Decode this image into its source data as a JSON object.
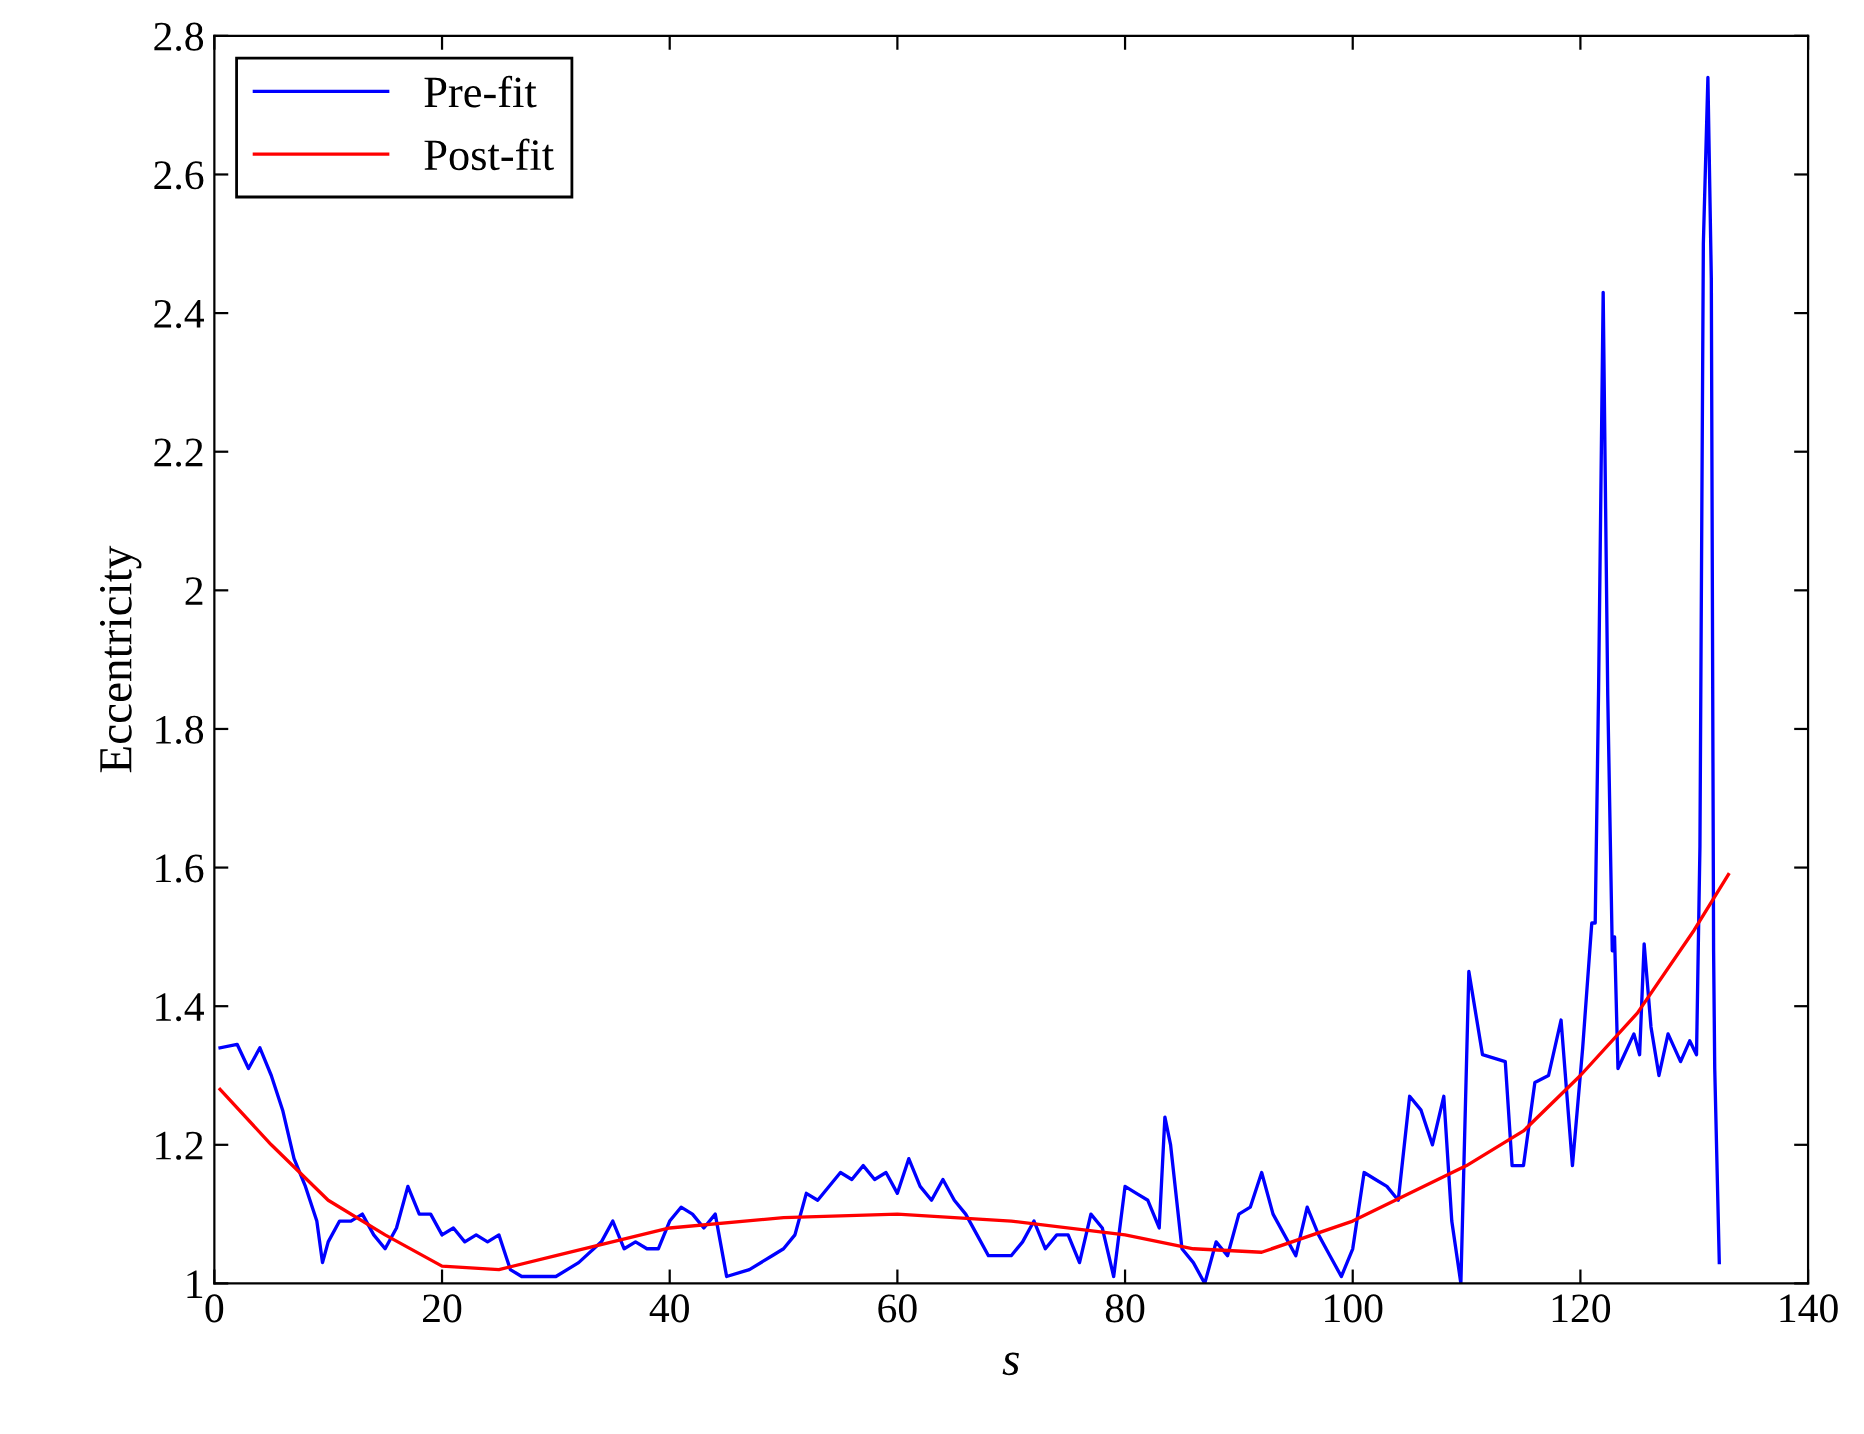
{
  "chart_data": {
    "type": "line",
    "xlabel": "s",
    "ylabel": "Eccentricity",
    "xlim": [
      0,
      140
    ],
    "ylim": [
      1,
      2.8
    ],
    "xticks": [
      0,
      20,
      40,
      60,
      80,
      100,
      120,
      140
    ],
    "yticks": [
      1,
      1.2,
      1.4,
      1.6,
      1.8,
      2,
      2.2,
      2.4,
      2.6,
      2.8
    ],
    "grid": false,
    "legend": "top left",
    "marker": "none",
    "line_style": "solid",
    "series": [
      {
        "name": "Pre-fit",
        "color": "#0000ff",
        "x": [
          0.5,
          2,
          3,
          4,
          5,
          6,
          7,
          8,
          9,
          9.5,
          10,
          11,
          12,
          13,
          14,
          15,
          16,
          17,
          18,
          19,
          20,
          21,
          22,
          23,
          24,
          25,
          26,
          27,
          28,
          30,
          32,
          34,
          35,
          36,
          37,
          38,
          39,
          40,
          41,
          42,
          43,
          44,
          45,
          47,
          49,
          50,
          51,
          52,
          53,
          55,
          56,
          57,
          58,
          59,
          60,
          61,
          62,
          63,
          64,
          65,
          66,
          67,
          68,
          70,
          71,
          72,
          73,
          74,
          75,
          76,
          77,
          78,
          79,
          80,
          81,
          82,
          83,
          83.5,
          84,
          85,
          86,
          87,
          88,
          89,
          90,
          91,
          92,
          93,
          94,
          95,
          96,
          97,
          98,
          99,
          100,
          101,
          102,
          103,
          104,
          105,
          106,
          107,
          108,
          108.7,
          109.5,
          110.2,
          111.4,
          113.4,
          114,
          115,
          116,
          117.2,
          118.3,
          119.3,
          120.2,
          121,
          121.3,
          121.6,
          122,
          122.4,
          122.8,
          123,
          123.3,
          124.7,
          125.2,
          125.6,
          126.2,
          126.9,
          127.7,
          128.8,
          129.6,
          130.2,
          130.5,
          130.8,
          131.2,
          131.5,
          131.7,
          131.8,
          132.2
        ],
        "values": [
          1.34,
          1.345,
          1.31,
          1.34,
          1.3,
          1.25,
          1.18,
          1.14,
          1.09,
          1.03,
          1.06,
          1.09,
          1.09,
          1.1,
          1.07,
          1.05,
          1.08,
          1.14,
          1.1,
          1.1,
          1.07,
          1.08,
          1.06,
          1.07,
          1.06,
          1.07,
          1.02,
          1.01,
          1.01,
          1.01,
          1.03,
          1.06,
          1.09,
          1.05,
          1.06,
          1.05,
          1.05,
          1.09,
          1.11,
          1.1,
          1.08,
          1.1,
          1.01,
          1.02,
          1.04,
          1.05,
          1.07,
          1.13,
          1.12,
          1.16,
          1.15,
          1.17,
          1.15,
          1.16,
          1.13,
          1.18,
          1.14,
          1.12,
          1.15,
          1.12,
          1.1,
          1.07,
          1.04,
          1.04,
          1.06,
          1.09,
          1.05,
          1.07,
          1.07,
          1.03,
          1.1,
          1.08,
          1.01,
          1.14,
          1.13,
          1.12,
          1.08,
          1.24,
          1.2,
          1.05,
          1.03,
          1.0,
          1.06,
          1.04,
          1.1,
          1.11,
          1.16,
          1.1,
          1.07,
          1.04,
          1.11,
          1.07,
          1.04,
          1.01,
          1.05,
          1.16,
          1.15,
          1.14,
          1.12,
          1.27,
          1.25,
          1.2,
          1.27,
          1.09,
          1.0,
          1.45,
          1.33,
          1.32,
          1.17,
          1.17,
          1.29,
          1.3,
          1.38,
          1.17,
          1.34,
          1.52,
          1.52,
          1.86,
          2.43,
          1.85,
          1.48,
          1.5,
          1.31,
          1.36,
          1.33,
          1.49,
          1.37,
          1.3,
          1.36,
          1.32,
          1.35,
          1.33,
          1.63,
          2.5,
          2.74,
          2.45,
          1.48,
          1.31,
          1.03
        ]
      },
      {
        "name": "Post-fit",
        "color": "#ff0000",
        "x": [
          0.5,
          5,
          10,
          15,
          20,
          25,
          30,
          40,
          50,
          60,
          70,
          80,
          86,
          92,
          100,
          110,
          115,
          120,
          125,
          130,
          133
        ],
        "values": [
          1.28,
          1.2,
          1.12,
          1.07,
          1.025,
          1.02,
          1.04,
          1.08,
          1.095,
          1.1,
          1.09,
          1.07,
          1.05,
          1.045,
          1.09,
          1.17,
          1.22,
          1.3,
          1.39,
          1.51,
          1.59
        ]
      }
    ]
  }
}
